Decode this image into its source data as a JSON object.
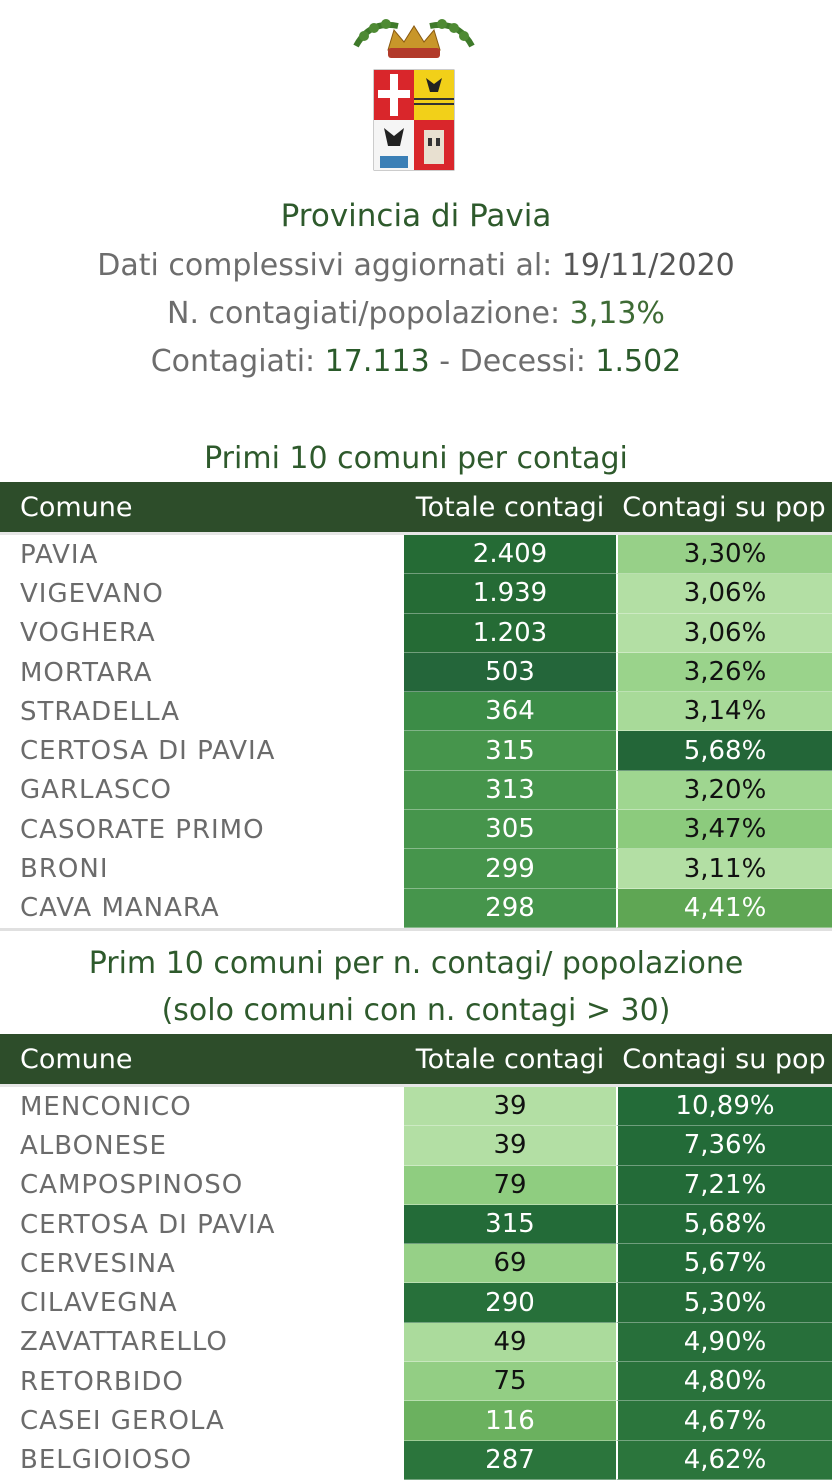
{
  "header": {
    "title": "Provincia di Pavia",
    "updated_label": "Dati complessivi aggiornati al:",
    "updated_value": "19/11/2020",
    "ratio_label": "N. contagiati/popolazione:",
    "ratio_value": "3,13%",
    "infected_label": "Contagiati:",
    "infected_value": "17.113",
    "separator": "-",
    "deaths_label": "Decessi:",
    "deaths_value": "1.502"
  },
  "colors": {
    "header_bg": "#2d4d2a",
    "title_green": "#2e5a2c",
    "scale": [
      "#b5e0a6",
      "#a3d794",
      "#8fcb80",
      "#76b96a",
      "#5aa550",
      "#3f8f42",
      "#2e7a3a",
      "#256b35",
      "#1f5f30"
    ]
  },
  "table1": {
    "title": "Primi 10 comuni per contagi",
    "columns": [
      "Comune",
      "Totale contagi",
      "Contagi su pop"
    ],
    "rows": [
      {
        "comune": "PAVIA",
        "totale": "2.409",
        "pct": "3,30%",
        "tot_level": 0.82,
        "pct_level": 0.22,
        "tot_color": "#256b35",
        "pct_color": "#97d088",
        "tot_text": "#ffffff",
        "pct_text": "#111111"
      },
      {
        "comune": "VIGEVANO",
        "totale": "1.939",
        "pct": "3,06%",
        "tot_level": 0.82,
        "pct_level": 0.1,
        "tot_color": "#256b35",
        "pct_color": "#b3dfa4",
        "tot_text": "#ffffff",
        "pct_text": "#111111"
      },
      {
        "comune": "VOGHERA",
        "totale": "1.203",
        "pct": "3,06%",
        "tot_level": 0.82,
        "pct_level": 0.1,
        "tot_color": "#256b35",
        "pct_color": "#b3dfa4",
        "tot_text": "#ffffff",
        "pct_text": "#111111"
      },
      {
        "comune": "MORTARA",
        "totale": "503",
        "pct": "3,26%",
        "tot_level": 0.85,
        "pct_level": 0.2,
        "tot_color": "#24663a",
        "pct_color": "#9ad38b",
        "tot_text": "#ffffff",
        "pct_text": "#111111"
      },
      {
        "comune": "STRADELLA",
        "totale": "364",
        "pct": "3,14%",
        "tot_level": 0.6,
        "pct_level": 0.14,
        "tot_color": "#3c8c47",
        "pct_color": "#a8da99",
        "tot_text": "#ffffff",
        "pct_text": "#111111"
      },
      {
        "comune": "CERTOSA DI PAVIA",
        "totale": "315",
        "pct": "5,68%",
        "tot_level": 0.55,
        "pct_level": 0.85,
        "tot_color": "#46954c",
        "pct_color": "#236638",
        "tot_text": "#ffffff",
        "pct_text": "#ffffff"
      },
      {
        "comune": "GARLASCO",
        "totale": "313",
        "pct": "3,20%",
        "tot_level": 0.55,
        "pct_level": 0.18,
        "tot_color": "#46954c",
        "pct_color": "#9fd690",
        "tot_text": "#ffffff",
        "pct_text": "#111111"
      },
      {
        "comune": "CASORATE PRIMO",
        "totale": "305",
        "pct": "3,47%",
        "tot_level": 0.55,
        "pct_level": 0.3,
        "tot_color": "#46954c",
        "pct_color": "#8ccb7d",
        "tot_text": "#ffffff",
        "pct_text": "#111111"
      },
      {
        "comune": "BRONI",
        "totale": "299",
        "pct": "3,11%",
        "tot_level": 0.55,
        "pct_level": 0.1,
        "tot_color": "#46954c",
        "pct_color": "#b3dfa4",
        "tot_text": "#ffffff",
        "pct_text": "#111111"
      },
      {
        "comune": "CAVA MANARA",
        "totale": "298",
        "pct": "4,41%",
        "tot_level": 0.55,
        "pct_level": 0.55,
        "tot_color": "#46954c",
        "pct_color": "#5fa654",
        "tot_text": "#ffffff",
        "pct_text": "#ffffff"
      }
    ]
  },
  "table2": {
    "title_line1": "Prim 10 comuni per n. contagi/ popolazione",
    "title_line2": "(solo comuni con n. contagi > 30)",
    "columns": [
      "Comune",
      "Totale contagi",
      "Contagi su pop"
    ],
    "rows": [
      {
        "comune": "MENCONICO",
        "totale": "39",
        "pct": "10,89%",
        "tot_level": 0.1,
        "pct_level": 0.92,
        "tot_color": "#b3dfa4",
        "pct_color": "#236b38",
        "tot_text": "#111111",
        "pct_text": "#ffffff"
      },
      {
        "comune": "ALBONESE",
        "totale": "39",
        "pct": "7,36%",
        "tot_level": 0.1,
        "pct_level": 0.88,
        "tot_color": "#b3dfa4",
        "pct_color": "#236b38",
        "tot_text": "#111111",
        "pct_text": "#ffffff"
      },
      {
        "comune": "CAMPOSPINOSO",
        "totale": "79",
        "pct": "7,21%",
        "tot_level": 0.3,
        "pct_level": 0.88,
        "tot_color": "#8fcd80",
        "pct_color": "#236b38",
        "tot_text": "#111111",
        "pct_text": "#ffffff"
      },
      {
        "comune": "CERTOSA DI PAVIA",
        "totale": "315",
        "pct": "5,68%",
        "tot_level": 0.85,
        "pct_level": 0.86,
        "tot_color": "#236b38",
        "pct_color": "#236b38",
        "tot_text": "#ffffff",
        "pct_text": "#ffffff"
      },
      {
        "comune": "CERVESINA",
        "totale": "69",
        "pct": "5,67%",
        "tot_level": 0.22,
        "pct_level": 0.86,
        "tot_color": "#96d087",
        "pct_color": "#236b38",
        "tot_text": "#111111",
        "pct_text": "#ffffff"
      },
      {
        "comune": "CILAVEGNA",
        "totale": "290",
        "pct": "5,30%",
        "tot_level": 0.82,
        "pct_level": 0.84,
        "tot_color": "#27703a",
        "pct_color": "#256b38",
        "tot_text": "#ffffff",
        "pct_text": "#ffffff"
      },
      {
        "comune": "ZAVATTARELLO",
        "totale": "49",
        "pct": "4,90%",
        "tot_level": 0.12,
        "pct_level": 0.82,
        "tot_color": "#abdb9c",
        "pct_color": "#276f3a",
        "tot_text": "#111111",
        "pct_text": "#ffffff"
      },
      {
        "comune": "RETORBIDO",
        "totale": "75",
        "pct": "4,80%",
        "tot_level": 0.28,
        "pct_level": 0.8,
        "tot_color": "#93ce84",
        "pct_color": "#29723b",
        "tot_text": "#111111",
        "pct_text": "#ffffff"
      },
      {
        "comune": "CASEI GEROLA",
        "totale": "116",
        "pct": "4,67%",
        "tot_level": 0.45,
        "pct_level": 0.78,
        "tot_color": "#6bb15f",
        "pct_color": "#2b753c",
        "tot_text": "#ffffff",
        "pct_text": "#ffffff"
      },
      {
        "comune": "BELGIOIOSO",
        "totale": "287",
        "pct": "4,62%",
        "tot_level": 0.8,
        "pct_level": 0.78,
        "tot_color": "#2b753c",
        "pct_color": "#2b753c",
        "tot_text": "#ffffff",
        "pct_text": "#ffffff"
      }
    ]
  }
}
